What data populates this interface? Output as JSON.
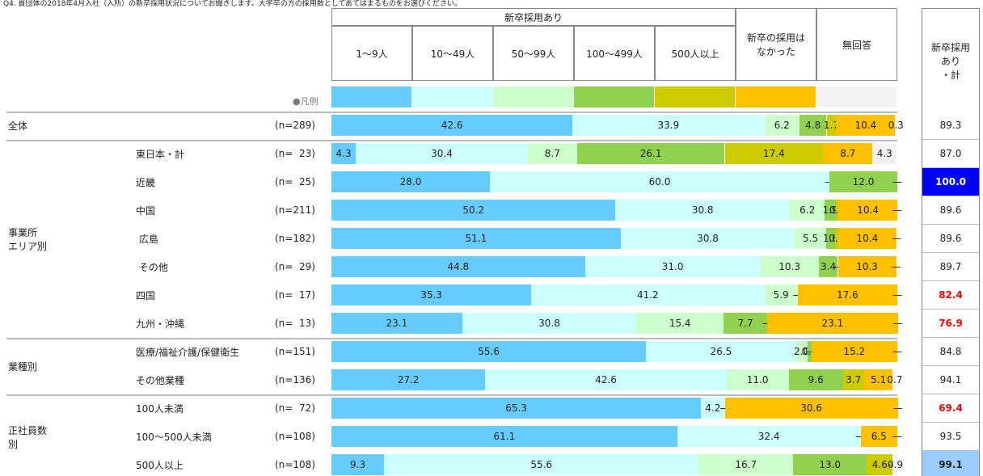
{
  "chart_data": {
    "type": "stacked-bar-table",
    "title": "Q4. 貴団体の2018年4月入社（入所）の新卒採用状況についてお聞きします。大学卒の方の採用数としてあてはまるものをお選びください。",
    "group_header": "新卒採用あり",
    "legend_label": "●凡例",
    "groups": [
      {
        "name": "全体",
        "rows": [
          0,
          0
        ]
      },
      {
        "name": "事業所\nエリア別",
        "rows": [
          1,
          7
        ]
      },
      {
        "name": "業種別",
        "rows": [
          8,
          9
        ]
      },
      {
        "name": "正社員数\n別",
        "rows": [
          10,
          12
        ]
      }
    ],
    "categories": [
      null,
      "東日本・計",
      "近畿",
      "中国",
      " 広島",
      " その他",
      "四国",
      "九州・沖縄",
      "医療/福祉介護/保健衛生",
      "その他業種",
      "100人未満",
      "100～500人未満",
      "500人以上"
    ],
    "n_labels": [
      "(n=289)",
      "(n=  23)",
      "(n=  25)",
      "(n=211)",
      "(n=182)",
      "(n=  29)",
      "(n=  17)",
      "(n=  13)",
      "(n=151)",
      "(n=136)",
      "(n=  72)",
      "(n=108)",
      "(n=108)"
    ],
    "xlim": [
      0,
      100
    ],
    "series": [
      {
        "name": "1～9人",
        "color": "#66ccff",
        "values": [
          42.6,
          4.3,
          28.0,
          50.2,
          51.1,
          44.8,
          35.3,
          23.1,
          55.6,
          27.2,
          65.3,
          61.1,
          9.3
        ],
        "value_labels": [
          "42.6",
          "4.3",
          "28.0",
          "50.2",
          "51.1",
          "44.8",
          "35.3",
          "23.1",
          "55.6",
          "27.2",
          "65.3",
          "61.1",
          "9.3"
        ]
      },
      {
        "name": "10～49人",
        "color": "#ccffff",
        "values": [
          33.9,
          30.4,
          60.0,
          30.8,
          30.8,
          31.0,
          41.2,
          30.8,
          26.5,
          42.6,
          4.2,
          32.4,
          55.6
        ],
        "value_labels": [
          "33.9",
          "30.4",
          "60.0",
          "30.8",
          "30.8",
          "31.0",
          "41.2",
          "30.8",
          "26.5",
          "42.6",
          "4.2",
          "32.4",
          "55.6"
        ]
      },
      {
        "name": "50～99人",
        "color": "#ccffcc",
        "values": [
          6.2,
          8.7,
          0,
          6.2,
          5.5,
          10.3,
          5.9,
          15.4,
          2.0,
          11.0,
          0,
          0,
          16.7
        ],
        "value_labels": [
          "6.2",
          "8.7",
          "—",
          "6.2",
          "5.5",
          "10.3",
          "5.9",
          "15.4",
          "2.0",
          "11.0",
          "—",
          "—",
          "16.7"
        ]
      },
      {
        "name": "100～499人",
        "color": "#92d050",
        "values": [
          4.8,
          26.1,
          12.0,
          1.9,
          1.6,
          3.4,
          0,
          7.7,
          0.7,
          9.6,
          0,
          0,
          13.0
        ],
        "value_labels": [
          "4.8",
          "26.1",
          "12.0",
          "1.9",
          "1.6",
          "3.4",
          "—",
          "7.7",
          "0.7",
          "9.6",
          "—",
          "—",
          "13.0"
        ]
      },
      {
        "name": "500人以上",
        "color": "#cccc00",
        "values": [
          1.7,
          17.4,
          0,
          0.5,
          0.5,
          0,
          0,
          0,
          0,
          3.7,
          0,
          0,
          4.6
        ],
        "value_labels": [
          "1.7",
          "17.4",
          "—",
          "0.5",
          "0.5",
          "—",
          "—",
          "—",
          "—",
          "3.7",
          "—",
          "—",
          "4.6"
        ]
      },
      {
        "name": "新卒の採用は\nなかった",
        "color": "#ffc000",
        "values": [
          10.4,
          8.7,
          0,
          10.4,
          10.4,
          10.3,
          17.6,
          23.1,
          15.2,
          5.1,
          30.6,
          6.5,
          0
        ],
        "value_labels": [
          "10.4",
          "8.7",
          "—",
          "10.4",
          "10.4",
          "10.3",
          "17.6",
          "23.1",
          "15.2",
          "5.1",
          "30.6",
          "6.5",
          "—"
        ]
      },
      {
        "name": "無回答",
        "color": "#f2f2f2",
        "values": [
          0.3,
          4.3,
          0,
          0,
          0,
          0,
          0,
          0,
          0,
          0.7,
          0,
          0,
          0.9
        ],
        "value_labels": [
          "0.3",
          "4.3",
          "—",
          "—",
          "—",
          "—",
          "—",
          "—",
          "—",
          "0.7",
          "—",
          "—",
          "0.9"
        ]
      }
    ],
    "total": {
      "name": "新卒採用\nあり\n・計",
      "values": [
        89.3,
        87.0,
        100.0,
        89.6,
        89.6,
        89.7,
        82.4,
        76.9,
        84.8,
        94.1,
        69.4,
        93.5,
        99.1
      ],
      "value_labels": [
        "89.3",
        "87.0",
        "100.0",
        "89.6",
        "89.6",
        "89.7",
        "82.4",
        "76.9",
        "84.8",
        "94.1",
        "69.4",
        "93.5",
        "99.1"
      ],
      "cell_colors": [
        null,
        null,
        "#0000ff",
        null,
        null,
        null,
        null,
        null,
        null,
        null,
        null,
        null,
        "#99ccff"
      ],
      "text_colors": [
        null,
        null,
        "#ffffff",
        null,
        null,
        null,
        "#ff0000",
        "#ff0000",
        null,
        null,
        "#ff0000",
        null,
        null
      ]
    }
  }
}
